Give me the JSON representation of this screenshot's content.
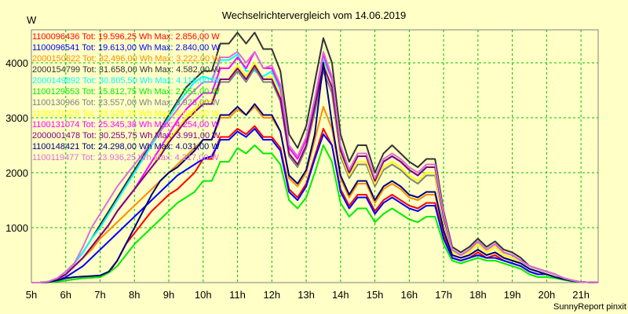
{
  "chart_data": {
    "type": "line",
    "title": "Wechselrichtervergleich vom 14.06.2019",
    "ylabel": "W",
    "footer": "SunnyReport pinxit",
    "x_categories": [
      "5h",
      "6h",
      "7h",
      "8h",
      "9h",
      "10h",
      "11h",
      "12h",
      "13h",
      "14h",
      "15h",
      "16h",
      "17h",
      "18h",
      "19h",
      "20h",
      "21h"
    ],
    "yticks": [
      1000,
      2000,
      3000,
      4000
    ],
    "ylim": [
      0,
      4600
    ],
    "xlim": [
      5,
      21.5
    ],
    "grid": true,
    "legend_position": "top-left",
    "x": [
      5,
      5.25,
      5.5,
      5.75,
      6,
      6.25,
      6.5,
      6.75,
      7,
      7.25,
      7.5,
      7.75,
      8,
      8.25,
      8.5,
      8.75,
      9,
      9.25,
      9.5,
      9.75,
      10,
      10.25,
      10.5,
      10.75,
      11,
      11.25,
      11.5,
      11.75,
      12,
      12.25,
      12.5,
      12.75,
      13,
      13.25,
      13.5,
      13.75,
      14,
      14.25,
      14.5,
      14.75,
      15,
      15.25,
      15.5,
      15.75,
      16,
      16.25,
      16.5,
      16.75,
      17,
      17.25,
      17.5,
      17.75,
      18,
      18.25,
      18.5,
      18.75,
      19,
      19.25,
      19.5,
      19.75,
      20,
      20.25,
      20.5,
      20.75,
      21,
      21.25,
      21.5
    ],
    "series": [
      {
        "name": "1100096436 Tot: 19.596,25 Wh Max: 2.856,00 W",
        "color": "#ff0000",
        "values": [
          0,
          0,
          5,
          20,
          40,
          60,
          80,
          90,
          100,
          180,
          400,
          700,
          900,
          1100,
          1300,
          1450,
          1600,
          1700,
          1850,
          2000,
          2250,
          2250,
          2650,
          2650,
          2800,
          2700,
          2850,
          2650,
          2650,
          2450,
          1700,
          1550,
          1800,
          2300,
          2800,
          2500,
          1700,
          1400,
          1600,
          1600,
          1300,
          1500,
          1600,
          1500,
          1400,
          1350,
          1450,
          1450,
          850,
          450,
          400,
          450,
          550,
          450,
          500,
          400,
          350,
          300,
          200,
          150,
          150,
          100,
          60,
          30,
          10,
          5,
          0
        ]
      },
      {
        "name": "1100096541 Tot: 19.613,00 Wh Max: 2.840,00 W",
        "color": "#0000ff",
        "values": [
          0,
          0,
          10,
          40,
          100,
          200,
          300,
          450,
          600,
          750,
          900,
          1050,
          1200,
          1350,
          1500,
          1650,
          1800,
          1950,
          2050,
          2150,
          2250,
          2300,
          2600,
          2600,
          2750,
          2650,
          2800,
          2600,
          2600,
          2400,
          1650,
          1500,
          1750,
          2250,
          2700,
          2500,
          1650,
          1350,
          1550,
          1550,
          1250,
          1450,
          1550,
          1450,
          1350,
          1300,
          1400,
          1400,
          800,
          450,
          400,
          450,
          500,
          450,
          450,
          400,
          350,
          300,
          200,
          150,
          150,
          100,
          60,
          30,
          10,
          5,
          0
        ]
      },
      {
        "name": "2000150622 Tot: 32.496,00 Wh Max: 3.222,00 W",
        "color": "#ff8c00",
        "values": [
          0,
          0,
          10,
          50,
          150,
          300,
          450,
          600,
          800,
          950,
          1100,
          1250,
          1400,
          1550,
          1700,
          1850,
          2000,
          2150,
          2300,
          2450,
          2600,
          2600,
          3000,
          3000,
          3150,
          3050,
          3200,
          3000,
          3000,
          2750,
          1900,
          1750,
          2000,
          2600,
          3200,
          2800,
          1900,
          1550,
          1800,
          1800,
          1450,
          1700,
          1800,
          1700,
          1550,
          1500,
          1600,
          1600,
          950,
          500,
          450,
          500,
          600,
          500,
          550,
          450,
          400,
          350,
          250,
          200,
          150,
          100,
          60,
          30,
          10,
          5,
          0
        ]
      },
      {
        "name": "2000154799 Tot: 31.658,00 Wh Max: 4.582,00 W",
        "color": "#333333",
        "values": [
          0,
          0,
          20,
          80,
          200,
          350,
          550,
          800,
          1050,
          1300,
          1550,
          1800,
          2050,
          2300,
          2550,
          2800,
          3050,
          3300,
          3550,
          3700,
          3850,
          3850,
          4350,
          4350,
          4550,
          4350,
          4550,
          4250,
          4250,
          3850,
          2700,
          2450,
          2850,
          3650,
          4450,
          4000,
          2700,
          2200,
          2500,
          2500,
          2000,
          2350,
          2500,
          2350,
          2200,
          2100,
          2250,
          2250,
          1300,
          650,
          550,
          650,
          800,
          650,
          750,
          600,
          550,
          450,
          300,
          250,
          200,
          150,
          80,
          40,
          10,
          5,
          0
        ]
      },
      {
        "name": "2000149892 Tot: 30.805,50 Wh Max: 4.116,00 W",
        "color": "#00ffff",
        "values": [
          0,
          0,
          20,
          80,
          200,
          350,
          550,
          800,
          1000,
          1250,
          1500,
          1750,
          2000,
          2250,
          2500,
          2750,
          3000,
          3250,
          3450,
          3650,
          3750,
          3700,
          4050,
          4050,
          4150,
          3850,
          3850,
          3750,
          3850,
          3500,
          2500,
          2300,
          2650,
          3350,
          4050,
          3700,
          2500,
          2050,
          2300,
          2300,
          1900,
          2200,
          2300,
          2200,
          2050,
          1950,
          2100,
          2100,
          1200,
          600,
          500,
          600,
          750,
          600,
          700,
          550,
          500,
          400,
          300,
          250,
          200,
          150,
          80,
          40,
          10,
          5,
          0
        ]
      },
      {
        "name": "1100129553 Tot: 15.812,75 Wh Max: 2.551,00 W",
        "color": "#00ee00",
        "values": [
          0,
          0,
          5,
          20,
          40,
          60,
          80,
          90,
          100,
          180,
          300,
          500,
          700,
          850,
          1000,
          1150,
          1300,
          1450,
          1550,
          1650,
          1850,
          1850,
          2200,
          2200,
          2450,
          2350,
          2500,
          2350,
          2350,
          2150,
          1500,
          1350,
          1550,
          2000,
          2500,
          2200,
          1450,
          1200,
          1350,
          1350,
          1100,
          1250,
          1350,
          1250,
          1150,
          1100,
          1200,
          1200,
          700,
          400,
          350,
          400,
          450,
          400,
          400,
          350,
          300,
          250,
          150,
          100,
          100,
          80,
          50,
          20,
          10,
          5,
          0
        ]
      },
      {
        "name": "1100130966 Tot: 23.557,00 Wh Max: 3.923,00 W",
        "color": "#808080",
        "values": [
          0,
          0,
          15,
          60,
          150,
          300,
          450,
          650,
          850,
          1050,
          1300,
          1500,
          1700,
          1900,
          2100,
          2300,
          2550,
          2750,
          2950,
          3100,
          3250,
          3250,
          3650,
          3650,
          3850,
          3650,
          3900,
          3650,
          3650,
          3300,
          2300,
          2100,
          2450,
          3100,
          3850,
          3450,
          2300,
          1900,
          2150,
          2150,
          1750,
          2050,
          2150,
          2050,
          1900,
          1800,
          1950,
          1950,
          1100,
          550,
          500,
          550,
          700,
          550,
          650,
          500,
          450,
          350,
          250,
          200,
          150,
          100,
          70,
          30,
          10,
          5,
          0
        ]
      },
      {
        "name": "1100131025 Tot: 23.329,25 Wh Max: 4.083,00 W",
        "color": "#ffff00",
        "values": [
          0,
          0,
          15,
          60,
          150,
          300,
          450,
          650,
          850,
          1050,
          1300,
          1500,
          1700,
          1900,
          2100,
          2350,
          2600,
          2800,
          3000,
          3150,
          3300,
          3300,
          3700,
          3700,
          3950,
          3750,
          4000,
          3700,
          3750,
          3400,
          2350,
          2150,
          2500,
          3200,
          4000,
          3550,
          2350,
          1950,
          2200,
          2200,
          1800,
          2100,
          2200,
          2100,
          1950,
          1850,
          2000,
          2000,
          1150,
          550,
          500,
          550,
          700,
          550,
          650,
          500,
          450,
          350,
          250,
          200,
          150,
          100,
          70,
          30,
          10,
          5,
          0
        ]
      },
      {
        "name": "1100131074 Tot: 25.345,38 Wh Max: 4.254,00 W",
        "color": "#ff00ff",
        "values": [
          0,
          0,
          15,
          60,
          150,
          300,
          450,
          650,
          850,
          1050,
          1300,
          1500,
          1700,
          1950,
          2200,
          2450,
          2700,
          2950,
          3150,
          3300,
          3450,
          3450,
          3900,
          3900,
          4100,
          3900,
          4200,
          3900,
          3900,
          3550,
          2450,
          2250,
          2600,
          3300,
          4150,
          3700,
          2450,
          2000,
          2300,
          2300,
          1850,
          2200,
          2300,
          2200,
          2050,
          1950,
          2100,
          2100,
          1200,
          600,
          500,
          600,
          750,
          600,
          700,
          550,
          500,
          400,
          300,
          250,
          200,
          150,
          80,
          40,
          10,
          5,
          0
        ]
      },
      {
        "name": "2000001478 Tot: 30.255,75 Wh Max: 3.991,00 W",
        "color": "#800080",
        "values": [
          0,
          0,
          15,
          60,
          150,
          300,
          450,
          650,
          850,
          1050,
          1300,
          1500,
          1700,
          1900,
          2100,
          2300,
          2550,
          2750,
          2950,
          3100,
          3250,
          3250,
          3700,
          3700,
          3900,
          3700,
          3950,
          3700,
          3700,
          3350,
          2350,
          2150,
          2500,
          3200,
          3950,
          3550,
          2400,
          2000,
          2300,
          2300,
          1850,
          2200,
          2300,
          2200,
          2050,
          1950,
          2100,
          2100,
          1200,
          600,
          500,
          600,
          750,
          600,
          700,
          550,
          500,
          400,
          300,
          250,
          200,
          150,
          80,
          40,
          10,
          5,
          0
        ]
      },
      {
        "name": "1100148421 Tot: 24.298,00 Wh Max: 4.031,00 W",
        "color": "#000080",
        "values": [
          0,
          0,
          10,
          40,
          80,
          100,
          110,
          120,
          130,
          200,
          400,
          700,
          1000,
          1300,
          1600,
          1850,
          2000,
          2100,
          2250,
          2400,
          2600,
          2600,
          3050,
          3050,
          3200,
          3050,
          3250,
          3050,
          3050,
          2750,
          1950,
          1800,
          2050,
          2700,
          4000,
          2900,
          1950,
          1600,
          1850,
          1850,
          1500,
          1750,
          1850,
          1750,
          1600,
          1550,
          1650,
          1650,
          950,
          500,
          450,
          500,
          600,
          500,
          550,
          450,
          400,
          350,
          250,
          200,
          150,
          100,
          60,
          30,
          10,
          5,
          0
        ]
      },
      {
        "name": "1100119477 Tot: 23.936,25 Wh Max: 4.217,00 W",
        "color": "#da70d6",
        "values": [
          0,
          0,
          20,
          80,
          200,
          350,
          650,
          1000,
          1250,
          1500,
          1750,
          1950,
          2150,
          2350,
          2550,
          2750,
          2950,
          3150,
          3350,
          3500,
          3650,
          3650,
          4100,
          4100,
          4200,
          4000,
          4200,
          3900,
          3950,
          3600,
          2500,
          2300,
          2650,
          3350,
          4200,
          3750,
          2500,
          2050,
          2350,
          2350,
          1900,
          2250,
          2350,
          2250,
          2100,
          2000,
          2150,
          2150,
          1250,
          600,
          500,
          600,
          750,
          600,
          700,
          550,
          500,
          400,
          300,
          250,
          200,
          150,
          80,
          40,
          10,
          5,
          0
        ]
      }
    ]
  }
}
